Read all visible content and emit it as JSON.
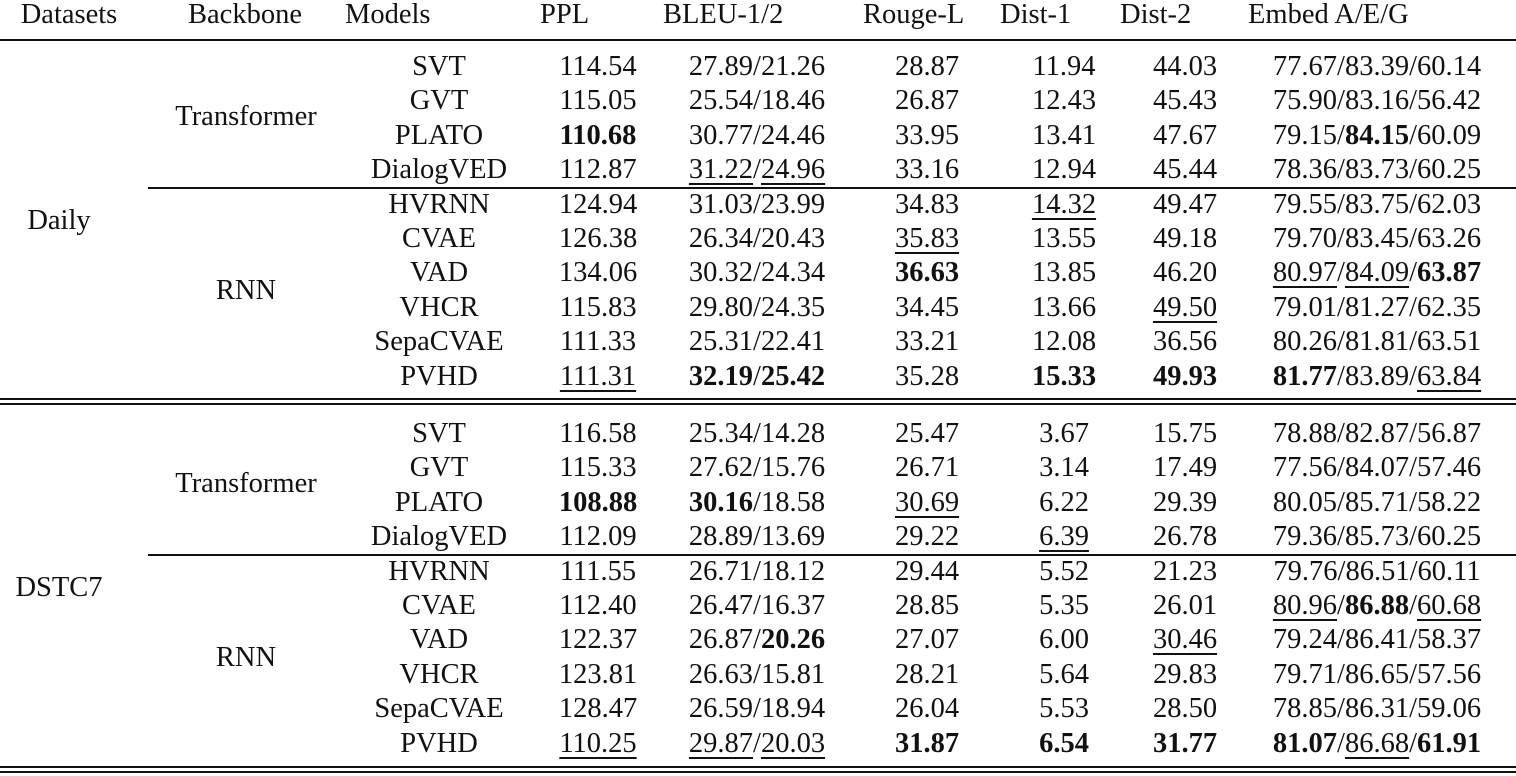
{
  "headers": {
    "datasets": "Datasets",
    "backbone": "Backbone",
    "models": "Models",
    "ppl": "PPL",
    "bleu": "BLEU-1/2",
    "rouge": "Rouge-L",
    "dist1": "Dist-1",
    "dist2": "Dist-2",
    "embed": "Embed A/E/G"
  },
  "groups": [
    {
      "dataset": "Daily",
      "backbones": [
        {
          "name": "Transformer",
          "rows": [
            {
              "model": "SVT",
              "ppl": "114.54",
              "bleu1": "27.89",
              "bleu2": "21.26",
              "rouge": "28.87",
              "dist1": "11.94",
              "dist2": "44.03",
              "emb_a": "77.67",
              "emb_e": "83.39",
              "emb_g": "60.14"
            },
            {
              "model": "GVT",
              "ppl": "115.05",
              "bleu1": "25.54",
              "bleu2": "18.46",
              "rouge": "26.87",
              "dist1": "12.43",
              "dist2": "45.43",
              "emb_a": "75.90",
              "emb_e": "83.16",
              "emb_g": "56.42"
            },
            {
              "model": "PLATO",
              "ppl": "110.68",
              "bleu1": "30.77",
              "bleu2": "24.46",
              "rouge": "33.95",
              "dist1": "13.41",
              "dist2": "47.67",
              "emb_a": "79.15",
              "emb_e": "84.15",
              "emb_g": "60.09"
            },
            {
              "model": "DialogVED",
              "ppl": "112.87",
              "bleu1": "31.22",
              "bleu2": "24.96",
              "rouge": "33.16",
              "dist1": "12.94",
              "dist2": "45.44",
              "emb_a": "78.36",
              "emb_e": "83.73",
              "emb_g": "60.25"
            }
          ]
        },
        {
          "name": "RNN",
          "rows": [
            {
              "model": "HVRNN",
              "ppl": "124.94",
              "bleu1": "31.03",
              "bleu2": "23.99",
              "rouge": "34.83",
              "dist1": "14.32",
              "dist2": "49.47",
              "emb_a": "79.55",
              "emb_e": "83.75",
              "emb_g": "62.03"
            },
            {
              "model": "CVAE",
              "ppl": "126.38",
              "bleu1": "26.34",
              "bleu2": "20.43",
              "rouge": "35.83",
              "dist1": "13.55",
              "dist2": "49.18",
              "emb_a": "79.70",
              "emb_e": "83.45",
              "emb_g": "63.26"
            },
            {
              "model": "VAD",
              "ppl": "134.06",
              "bleu1": "30.32",
              "bleu2": "24.34",
              "rouge": "36.63",
              "dist1": "13.85",
              "dist2": "46.20",
              "emb_a": "80.97",
              "emb_e": "84.09",
              "emb_g": "63.87"
            },
            {
              "model": "VHCR",
              "ppl": "115.83",
              "bleu1": "29.80",
              "bleu2": "24.35",
              "rouge": "34.45",
              "dist1": "13.66",
              "dist2": "49.50",
              "emb_a": "79.01",
              "emb_e": "81.27",
              "emb_g": "62.35"
            },
            {
              "model": "SepaCVAE",
              "ppl": "111.33",
              "bleu1": "25.31",
              "bleu2": "22.41",
              "rouge": "33.21",
              "dist1": "12.08",
              "dist2": "36.56",
              "emb_a": "80.26",
              "emb_e": "81.81",
              "emb_g": "63.51"
            },
            {
              "model": "PVHD",
              "ppl": "111.31",
              "bleu1": "32.19",
              "bleu2": "25.42",
              "rouge": "35.28",
              "dist1": "15.33",
              "dist2": "49.93",
              "emb_a": "81.77",
              "emb_e": "83.89",
              "emb_g": "63.84"
            }
          ]
        }
      ]
    },
    {
      "dataset": "DSTC7",
      "backbones": [
        {
          "name": "Transformer",
          "rows": [
            {
              "model": "SVT",
              "ppl": "116.58",
              "bleu1": "25.34",
              "bleu2": "14.28",
              "rouge": "25.47",
              "dist1": "3.67",
              "dist2": "15.75",
              "emb_a": "78.88",
              "emb_e": "82.87",
              "emb_g": "56.87"
            },
            {
              "model": "GVT",
              "ppl": "115.33",
              "bleu1": "27.62",
              "bleu2": "15.76",
              "rouge": "26.71",
              "dist1": "3.14",
              "dist2": "17.49",
              "emb_a": "77.56",
              "emb_e": "84.07",
              "emb_g": "57.46"
            },
            {
              "model": "PLATO",
              "ppl": "108.88",
              "bleu1": "30.16",
              "bleu2": "18.58",
              "rouge": "30.69",
              "dist1": "6.22",
              "dist2": "29.39",
              "emb_a": "80.05",
              "emb_e": "85.71",
              "emb_g": "58.22"
            },
            {
              "model": "DialogVED",
              "ppl": "112.09",
              "bleu1": "28.89",
              "bleu2": "13.69",
              "rouge": "29.22",
              "dist1": "6.39",
              "dist2": "26.78",
              "emb_a": "79.36",
              "emb_e": "85.73",
              "emb_g": "60.25"
            }
          ]
        },
        {
          "name": "RNN",
          "rows": [
            {
              "model": "HVRNN",
              "ppl": "111.55",
              "bleu1": "26.71",
              "bleu2": "18.12",
              "rouge": "29.44",
              "dist1": "5.52",
              "dist2": "21.23",
              "emb_a": "79.76",
              "emb_e": "86.51",
              "emb_g": "60.11"
            },
            {
              "model": "CVAE",
              "ppl": "112.40",
              "bleu1": "26.47",
              "bleu2": "16.37",
              "rouge": "28.85",
              "dist1": "5.35",
              "dist2": "26.01",
              "emb_a": "80.96",
              "emb_e": "86.88",
              "emb_g": "60.68"
            },
            {
              "model": "VAD",
              "ppl": "122.37",
              "bleu1": "26.87",
              "bleu2": "20.26",
              "rouge": "27.07",
              "dist1": "6.00",
              "dist2": "30.46",
              "emb_a": "79.24",
              "emb_e": "86.41",
              "emb_g": "58.37"
            },
            {
              "model": "VHCR",
              "ppl": "123.81",
              "bleu1": "26.63",
              "bleu2": "15.81",
              "rouge": "28.21",
              "dist1": "5.64",
              "dist2": "29.83",
              "emb_a": "79.71",
              "emb_e": "86.65",
              "emb_g": "57.56"
            },
            {
              "model": "SepaCVAE",
              "ppl": "128.47",
              "bleu1": "26.59",
              "bleu2": "18.94",
              "rouge": "26.04",
              "dist1": "5.53",
              "dist2": "28.50",
              "emb_a": "78.85",
              "emb_e": "86.31",
              "emb_g": "59.06"
            },
            {
              "model": "PVHD",
              "ppl": "110.25",
              "bleu1": "29.87",
              "bleu2": "20.03",
              "rouge": "31.87",
              "dist1": "6.54",
              "dist2": "31.77",
              "emb_a": "81.07",
              "emb_e": "86.68",
              "emb_g": "61.91"
            }
          ]
        }
      ]
    }
  ]
}
